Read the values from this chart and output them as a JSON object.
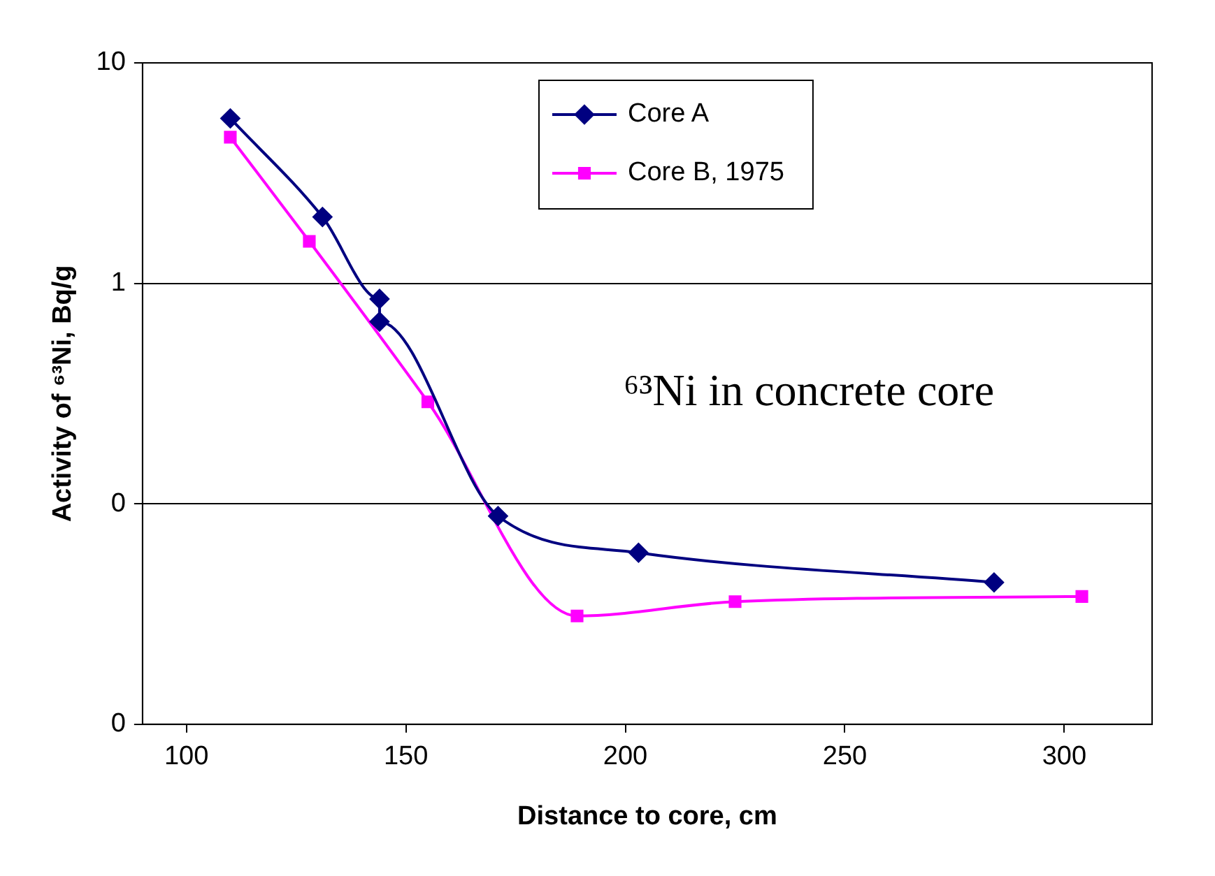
{
  "chart_data": {
    "type": "line",
    "xlabel": "Distance to core, cm",
    "ylabel": "Activity of ⁶³Ni, Bq/g",
    "xlim": [
      90,
      320
    ],
    "xticks": [
      100,
      150,
      200,
      250,
      300
    ],
    "ylim": [
      0.01,
      10
    ],
    "yticks": [
      10,
      1,
      {
        "value": 0.1,
        "label": "0"
      },
      {
        "value": 0.01,
        "label": "0"
      }
    ],
    "log": "y",
    "grid": "y",
    "legend": "top",
    "line_style": "solid",
    "annotations": [
      "⁶³Ni in concrete core"
    ],
    "series": [
      {
        "name": "Core A",
        "color": "#000080",
        "marker": "diamond",
        "x": [
          110,
          131,
          144,
          144,
          171,
          203,
          284
        ],
        "values": [
          5.6,
          2.0,
          0.85,
          0.67,
          0.088,
          0.06,
          0.044
        ]
      },
      {
        "name": "Core B, 1975",
        "color": "#ff00ff",
        "marker": "square",
        "x": [
          110,
          128,
          155,
          189,
          225,
          304
        ],
        "values": [
          4.6,
          1.55,
          0.29,
          0.031,
          0.036,
          0.038
        ]
      }
    ]
  }
}
